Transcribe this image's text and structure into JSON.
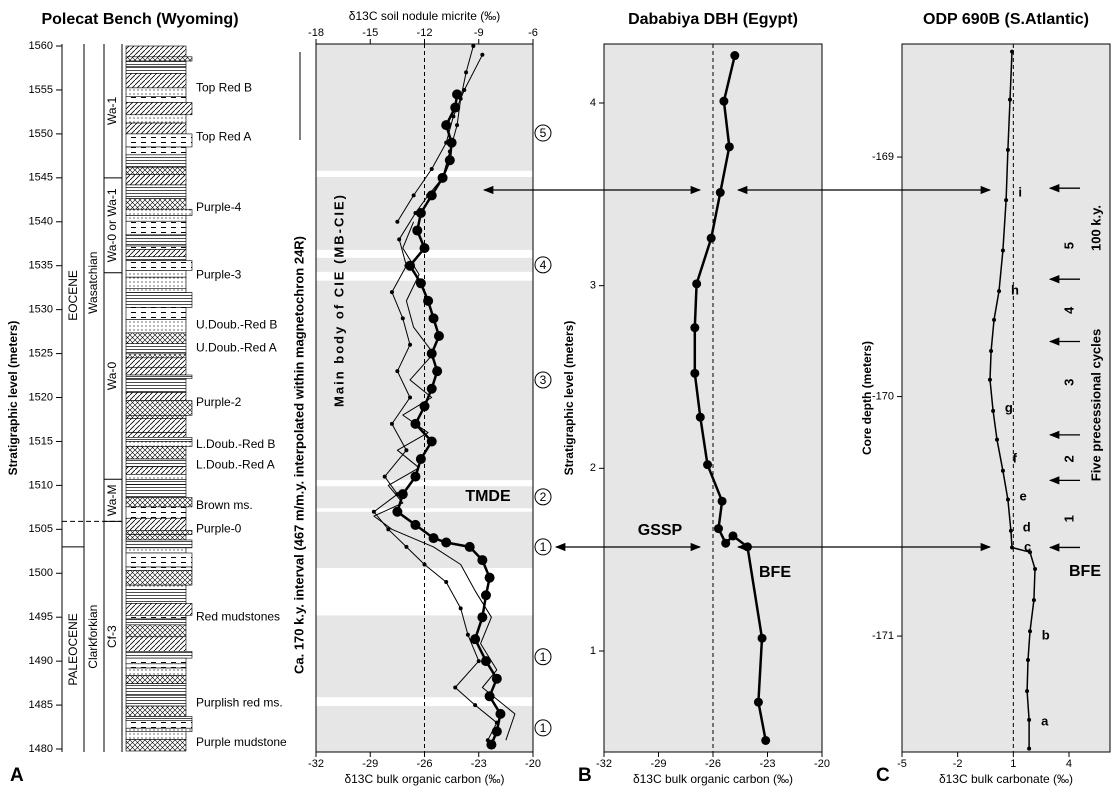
{
  "chart_data": [
    {
      "type": "column",
      "title": "Polecat Bench (Wyoming)",
      "y_label": "Stratigraphic level (meters)",
      "ylim": [
        1479.66,
        1560.23
      ],
      "yticks": [
        1480,
        1485,
        1490,
        1495,
        1500,
        1505,
        1510,
        1515,
        1520,
        1525,
        1530,
        1535,
        1540,
        1545,
        1550,
        1555,
        1560
      ],
      "epochs": [
        {
          "name": "EOCENE",
          "bottom": 1503,
          "top": 1560.23
        },
        {
          "name": "PALEOCENE",
          "bottom": 1479.66,
          "top": 1503
        }
      ],
      "ages": [
        {
          "name": "Wasatchian",
          "bottom": 1505.9,
          "top": 1560.23
        },
        {
          "name": "Clarkforkian",
          "bottom": 1479.66,
          "top": 1505.9
        }
      ],
      "zones": [
        {
          "name": "Wa-1",
          "bottom": 1545,
          "top": 1560.23
        },
        {
          "name": "Wa-0 or Wa-1",
          "bottom": 1534.2,
          "top": 1545
        },
        {
          "name": "Wa-0",
          "bottom": 1510.7,
          "top": 1534.2
        },
        {
          "name": "Wa-M",
          "bottom": 1505.9,
          "top": 1510.7
        },
        {
          "name": "Cf-3",
          "bottom": 1479.66,
          "top": 1505.9
        }
      ],
      "units": [
        {
          "name": "Top Red B",
          "level": 1555.2
        },
        {
          "name": "Top Red A",
          "level": 1549.6
        },
        {
          "name": "Purple-4",
          "level": 1541.6
        },
        {
          "name": "Purple-3",
          "level": 1533.9
        },
        {
          "name": "U.Doub.-Red B",
          "level": 1528.2
        },
        {
          "name": "U.Doub.-Red A",
          "level": 1525.6
        },
        {
          "name": "Purple-2",
          "level": 1519.4
        },
        {
          "name": "L.Doub.-Red B",
          "level": 1514.6
        },
        {
          "name": "L.Doub.-Red A",
          "level": 1512.3
        },
        {
          "name": "Brown ms.",
          "level": 1507.7
        },
        {
          "name": "Purple-0",
          "level": 1505.0
        },
        {
          "name": "Red mudstones",
          "level": 1495.0
        },
        {
          "name": "Purplish red ms.",
          "level": 1485.2
        },
        {
          "name": "Purple mudstone",
          "level": 1480.7
        }
      ],
      "panel_label": "A"
    },
    {
      "type": "line",
      "x_label": "δ13C bulk organic carbon (‰)",
      "x2_label": "δ13C soil nodule micrite (‰)",
      "xlim": [
        -32,
        -20
      ],
      "xticks": [
        -32,
        -29,
        -26,
        -23,
        -20
      ],
      "x2lim": [
        -18,
        -6
      ],
      "x2ticks": [
        -18,
        -15,
        -12,
        -9,
        -6
      ],
      "ylim": [
        1479.66,
        1560.23
      ],
      "refline": -26,
      "shaded_intervals": [
        [
          1545.8,
          1560.23
        ],
        [
          1536.8,
          1545.1
        ],
        [
          1534.3,
          1535.9
        ],
        [
          1510.6,
          1533.3
        ],
        [
          1507.4,
          1509.9
        ],
        [
          1500.6,
          1507.0
        ],
        [
          1485.9,
          1495.2
        ],
        [
          1479.66,
          1484.9
        ]
      ],
      "series": [
        {
          "color": "#000000",
          "line_width": 2.5,
          "marker_size": 10,
          "x": [
            -22.3,
            -22.0,
            -21.8,
            -22.4,
            -22.0,
            -22.6,
            -23.2,
            -22.8,
            -22.6,
            -22.4,
            -22.8,
            -23.5,
            -24.8,
            -25.5,
            -26.5,
            -27.5,
            -27.2,
            -26.5,
            -26.2,
            -25.6,
            -26.5,
            -26.0,
            -25.6,
            -25.3,
            -25.6,
            -25.2,
            -25.5,
            -25.8,
            -26.2,
            -26.8,
            -26.0,
            -26.4,
            -26.2,
            -25.6,
            -25.0,
            -24.6,
            -24.5,
            -24.8,
            -24.3,
            -24.2
          ],
          "y": [
            1480.5,
            1482,
            1484,
            1486,
            1488,
            1490,
            1492.5,
            1495,
            1497.5,
            1499.5,
            1501.5,
            1503,
            1503.5,
            1504,
            1505.5,
            1507,
            1509,
            1511,
            1513,
            1515,
            1517,
            1519,
            1521,
            1523,
            1525,
            1527,
            1529,
            1531,
            1533,
            1535,
            1537,
            1539,
            1541,
            1543,
            1545,
            1547,
            1549,
            1551,
            1553,
            1554.5
          ]
        },
        {
          "color": "#000000",
          "line_width": 1,
          "marker_size": 4,
          "axis": "x2",
          "x": [
            -8.5,
            -8.0,
            -9.2,
            -10.3,
            -9.0,
            -9.6,
            -10.0,
            -10.8,
            -12.0,
            -13.0,
            -14.0,
            -14.8,
            -13.5,
            -14.2,
            -13.0,
            -13.8,
            -12.8,
            -13.5,
            -12.8,
            -13.2,
            -13.8,
            -13.0,
            -13.4,
            -12.5,
            -11.8,
            -11.0,
            -10.6,
            -10.2,
            -10.0,
            -9.7,
            -9.3
          ],
          "y": [
            1481,
            1483,
            1485,
            1487,
            1490,
            1493,
            1496,
            1499,
            1501,
            1503,
            1505,
            1507,
            1509,
            1511,
            1514,
            1517,
            1520,
            1523,
            1526,
            1529,
            1532,
            1535,
            1538,
            1541,
            1543,
            1545,
            1548,
            1551,
            1554,
            1557,
            1560
          ]
        },
        {
          "color": "#000000",
          "line_width": 1,
          "marker_size": 4,
          "axis": "x2",
          "x": [
            -13.5,
            -12.6,
            -11.6,
            -10.8,
            -10.4,
            -9.8,
            -8.8
          ],
          "y": [
            1540,
            1543,
            1546,
            1549,
            1552,
            1555,
            1559
          ]
        },
        {
          "color": "#000000",
          "line_width": 1,
          "marker_size": 0,
          "x": [
            -21.5,
            -21.0,
            -22.8,
            -22.0,
            -22.9,
            -22.3,
            -23.2,
            -24.0,
            -25.5,
            -27.8,
            -28.8,
            -27.2,
            -28.0,
            -26.3,
            -27.5,
            -25.8,
            -27.2,
            -25.6,
            -26.8,
            -25.5,
            -26.6,
            -27.0,
            -26.3,
            -27.2,
            -26.6
          ],
          "y": [
            1481,
            1484,
            1487,
            1489,
            1492,
            1495,
            1498,
            1501,
            1503,
            1505,
            1506.5,
            1508,
            1510,
            1512,
            1514,
            1516,
            1518,
            1520,
            1522,
            1525,
            1528,
            1531,
            1534,
            1537,
            1540
          ]
        }
      ],
      "markers": [
        {
          "label": "5",
          "level": 1550.1
        },
        {
          "label": "4",
          "level": 1535.1
        },
        {
          "label": "3",
          "level": 1522
        },
        {
          "label": "2",
          "level": 1508.7
        },
        {
          "label": "1",
          "level": 1503
        },
        {
          "label": "1",
          "level": 1490.5
        },
        {
          "label": "1",
          "level": 1482.4
        }
      ],
      "annotations": [
        "Ca. 170 k.y. interval (467 m/m.y. interpolated within magnetochron 24R)",
        "Main body of CIE (MB-CIE)",
        "TMDE"
      ]
    },
    {
      "type": "line",
      "title": "Dababiya DBH (Egypt)",
      "x_label": "δ13C bulk organic carbon (‰)",
      "y_label": "Stratigraphic level (meters)",
      "xlim": [
        -32,
        -20
      ],
      "xticks": [
        -32,
        -29,
        -26,
        -23,
        -20
      ],
      "ylim": [
        0.447,
        4.323
      ],
      "yticks": [
        1,
        2,
        3,
        4
      ],
      "refline": -26,
      "series": [
        {
          "color": "#000000",
          "line_width": 2.5,
          "marker_size": 9,
          "x": [
            -24.8,
            -25.4,
            -25.1,
            -25.6,
            -26.1,
            -26.9,
            -27.0,
            -27.0,
            -26.7,
            -26.3,
            -25.5,
            -25.7,
            -25.3,
            -24.9,
            -24.1,
            -23.3,
            -23.5,
            -23.1
          ],
          "y": [
            4.26,
            4.01,
            3.76,
            3.51,
            3.26,
            3.01,
            2.77,
            2.52,
            2.28,
            2.02,
            1.82,
            1.67,
            1.59,
            1.63,
            1.57,
            1.07,
            0.72,
            0.51
          ]
        }
      ],
      "annotations": [
        "GSSP",
        "BFE"
      ],
      "panel_label": "B"
    },
    {
      "type": "line",
      "title": "ODP 690B (S.Atlantic)",
      "x_label": "δ13C bulk carbonate (‰)",
      "y_label": "Core depth (meters)",
      "xlim": [
        -5,
        6.21
      ],
      "xticks": [
        -5,
        -2,
        1,
        4
      ],
      "ylim": [
        -171.484,
        -168.528
      ],
      "yticks": [
        -169,
        -170,
        -171
      ],
      "refline": 1,
      "series": [
        {
          "color": "#000000",
          "line_width": 1.5,
          "marker_size": 4,
          "x": [
            0.93,
            0.82,
            0.71,
            0.61,
            0.44,
            0.23,
            -0.04,
            -0.2,
            -0.26,
            -0.09,
            0.12,
            0.44,
            0.71,
            0.87,
            0.93,
            1.9,
            2.17,
            2.11,
            1.9,
            1.79,
            1.74,
            1.85,
            1.85
          ],
          "y": [
            -168.56,
            -168.76,
            -168.97,
            -169.18,
            -169.39,
            -169.56,
            -169.68,
            -169.81,
            -169.93,
            -170.06,
            -170.18,
            -170.31,
            -170.43,
            -170.56,
            -170.63,
            -170.65,
            -170.72,
            -170.85,
            -170.98,
            -171.1,
            -171.23,
            -171.35,
            -171.47
          ]
        }
      ],
      "letters": [
        {
          "label": "a",
          "depth": -171.36
        },
        {
          "label": "b",
          "depth": -171.0
        },
        {
          "label": "c",
          "depth": -170.63
        },
        {
          "label": "d",
          "depth": -170.55
        },
        {
          "label": "e",
          "depth": -170.42
        },
        {
          "label": "f",
          "depth": -170.26
        },
        {
          "label": "g",
          "depth": -170.05
        },
        {
          "label": "h",
          "depth": -169.56
        },
        {
          "label": "i",
          "depth": -169.15
        }
      ],
      "cycles": [
        {
          "label": "5",
          "depth": -169.37
        },
        {
          "label": "4",
          "depth": -169.64
        },
        {
          "label": "3",
          "depth": -169.94
        },
        {
          "label": "2",
          "depth": -170.26
        },
        {
          "label": "1",
          "depth": -170.51
        }
      ],
      "cycle_boundaries": [
        -169.13,
        -169.51,
        -169.77,
        -170.16,
        -170.35,
        -170.63
      ],
      "annotations": [
        "BFE",
        "Five precessional cycles",
        "100 k.y."
      ],
      "panel_label": "C"
    }
  ]
}
